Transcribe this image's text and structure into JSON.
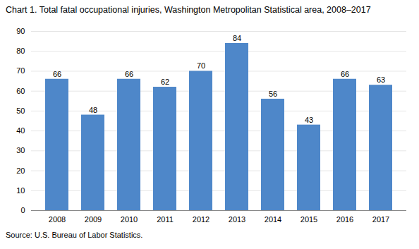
{
  "chart_data": {
    "type": "bar",
    "title": "Chart 1. Total fatal occupational injuries, Washington Metropolitan Statistical area, 2008–2017",
    "categories": [
      "2008",
      "2009",
      "2010",
      "2011",
      "2012",
      "2013",
      "2014",
      "2015",
      "2016",
      "2017"
    ],
    "values": [
      66,
      48,
      66,
      62,
      70,
      84,
      56,
      43,
      66,
      63
    ],
    "color": "#4E87C9",
    "ylim": [
      0,
      90
    ],
    "yticks": [
      0,
      10,
      20,
      30,
      40,
      50,
      60,
      70,
      80,
      90
    ],
    "grid": true,
    "data_labels": true,
    "annotations": [
      "Source: U.S. Bureau of Labor Statistics."
    ]
  }
}
